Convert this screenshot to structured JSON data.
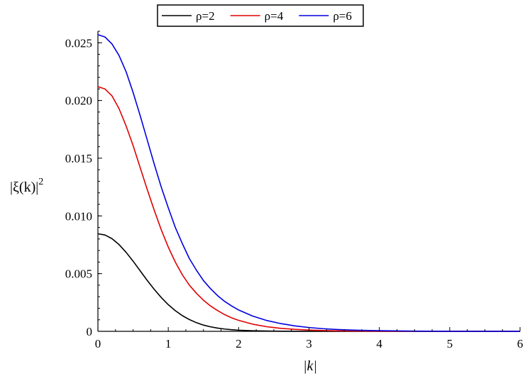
{
  "chart_data": {
    "type": "line",
    "title": "",
    "xlabel": "|k|",
    "ylabel_main": "|ξ(k)|",
    "ylabel_sup": "2",
    "xlim": [
      0,
      6
    ],
    "ylim": [
      0,
      0.026
    ],
    "xticks": [
      0,
      1,
      2,
      3,
      4,
      5,
      6
    ],
    "xtick_labels": [
      "0",
      "1",
      "2",
      "3",
      "4",
      "5",
      "6"
    ],
    "yticks": [
      0,
      0.005,
      0.01,
      0.015,
      0.02,
      0.025
    ],
    "ytick_labels": [
      "0",
      "0.005",
      "0.010",
      "0.015",
      "0.020",
      "0.025"
    ],
    "grid": false,
    "legend_position": "top-center",
    "x": [
      0,
      0.1,
      0.2,
      0.3,
      0.4,
      0.5,
      0.6,
      0.7,
      0.8,
      0.9,
      1.0,
      1.1,
      1.2,
      1.3,
      1.4,
      1.5,
      1.6,
      1.7,
      1.8,
      1.9,
      2.0,
      2.2,
      2.4,
      2.6,
      2.8,
      3.0,
      3.2,
      3.4,
      3.6,
      3.8,
      4.0,
      4.5,
      5.0,
      5.5,
      6.0
    ],
    "series": [
      {
        "name": "ρ=2",
        "color": "#000000",
        "values": [
          0.00845,
          0.00835,
          0.00803,
          0.00752,
          0.00685,
          0.00608,
          0.00525,
          0.00442,
          0.00364,
          0.00293,
          0.00231,
          0.00179,
          0.00136,
          0.00102,
          0.00075,
          0.00054,
          0.00039,
          0.00028,
          0.0002,
          0.00014,
          0.0001,
          5e-05,
          2.5e-05,
          1.2e-05,
          6e-06,
          3e-06,
          1e-06,
          0,
          0,
          0,
          0,
          0,
          0,
          0,
          0
        ]
      },
      {
        "name": "ρ=4",
        "color": "#e00000",
        "values": [
          0.0212,
          0.021,
          0.0204,
          0.0193,
          0.0178,
          0.0161,
          0.0142,
          0.0123,
          0.0105,
          0.0088,
          0.0073,
          0.006,
          0.0049,
          0.004,
          0.0033,
          0.0027,
          0.0022,
          0.0018,
          0.00145,
          0.00117,
          0.00095,
          0.00062,
          0.0004,
          0.00026,
          0.00017,
          0.00011,
          7e-05,
          4.5e-05,
          3e-05,
          2e-05,
          1.3e-05,
          4e-06,
          1.2e-06,
          4e-07,
          1e-07
        ]
      },
      {
        "name": "ρ=6",
        "color": "#0000e0",
        "values": [
          0.0257,
          0.0255,
          0.0249,
          0.0239,
          0.0225,
          0.0207,
          0.0187,
          0.0166,
          0.0145,
          0.0125,
          0.0107,
          0.009,
          0.0076,
          0.0063,
          0.0053,
          0.0044,
          0.0037,
          0.0031,
          0.0026,
          0.0022,
          0.00185,
          0.00132,
          0.00094,
          0.00067,
          0.00047,
          0.00033,
          0.00023,
          0.00016,
          0.00011,
          8e-05,
          5.5e-05,
          2e-05,
          7e-06,
          2.5e-06,
          1e-06
        ]
      }
    ]
  }
}
